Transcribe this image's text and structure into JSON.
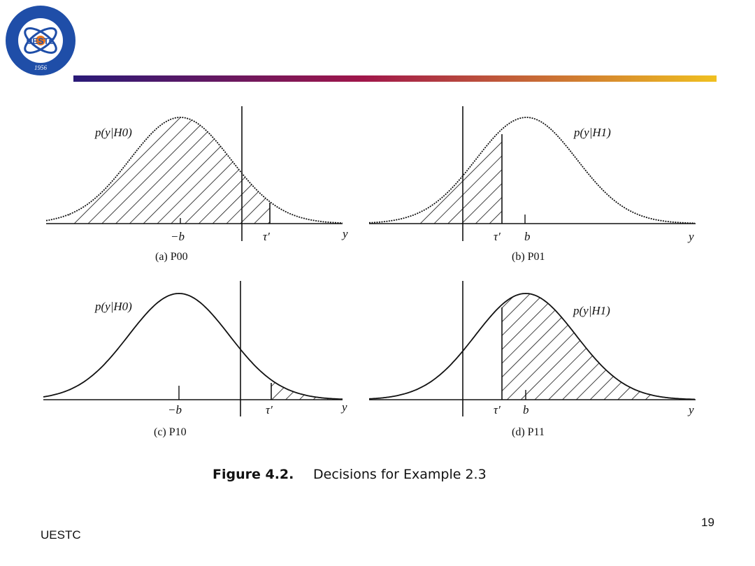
{
  "logo": {
    "center_text": "UESTC",
    "year": "1956",
    "colors": {
      "ring": "#1f4ea8",
      "inner": "#ffffff",
      "accent": "#e8741c"
    }
  },
  "header_bar": {
    "gradient_start": "#2a1a78",
    "gradient_mid": "#a0164a",
    "gradient_end": "#f0c020"
  },
  "figure": {
    "caption_label": "Figure 4.2.",
    "caption_text": "Decisions for Example 2.3",
    "panels": [
      {
        "id": "a",
        "curve_label": "p(y|H0)",
        "ticks": [
          "−b",
          "τ′",
          "y"
        ],
        "sub_label": "(a) P00",
        "shaded": "y<τ′ under H0"
      },
      {
        "id": "b",
        "curve_label": "p(y|H1)",
        "ticks": [
          "τ′",
          "b",
          "y"
        ],
        "sub_label": "(b) P01",
        "shaded": "y<τ′ under H1"
      },
      {
        "id": "c",
        "curve_label": "p(y|H0)",
        "ticks": [
          "−b",
          "τ′",
          "y"
        ],
        "sub_label": "(c) P10",
        "shaded": "y>τ′ under H0"
      },
      {
        "id": "d",
        "curve_label": "p(y|H1)",
        "ticks": [
          "τ′",
          "b",
          "y"
        ],
        "sub_label": "(d) P11",
        "shaded": "y>τ′ under H1"
      }
    ]
  },
  "footer": {
    "left_text": "UESTC",
    "page_number": "19"
  }
}
